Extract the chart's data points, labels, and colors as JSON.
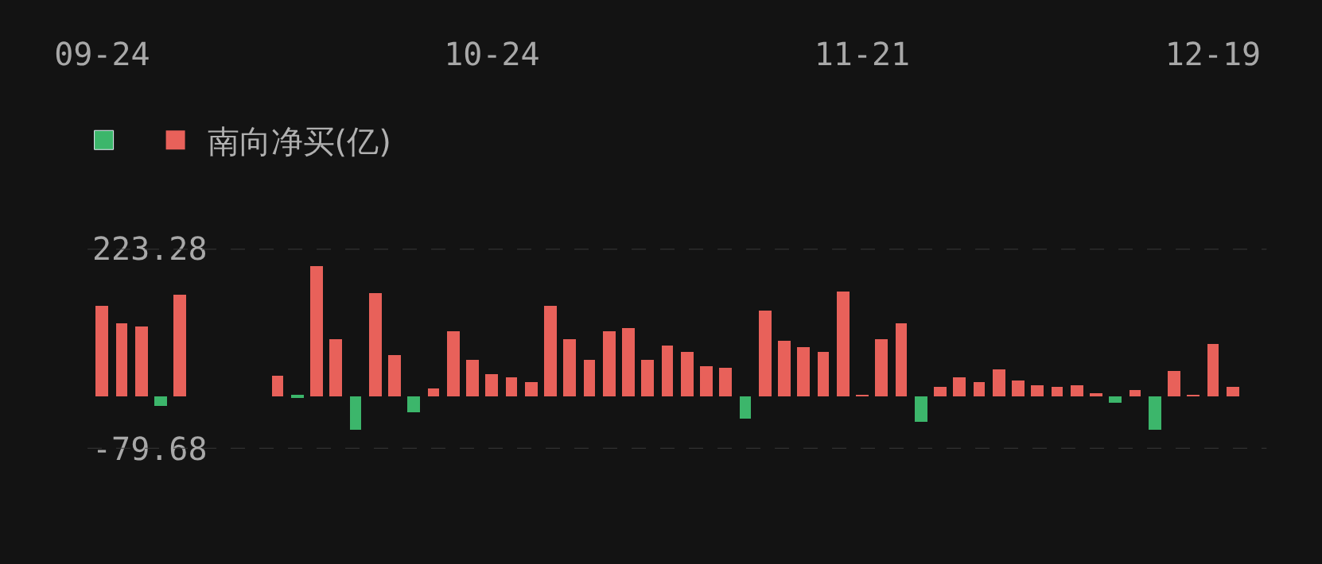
{
  "chart_data": {
    "type": "bar",
    "categories": [
      "09-24",
      null,
      null,
      null,
      null,
      null,
      null,
      null,
      null,
      null,
      null,
      null,
      null,
      null,
      null,
      null,
      null,
      null,
      null,
      null,
      "10-24",
      null,
      null,
      null,
      null,
      null,
      null,
      null,
      null,
      null,
      null,
      null,
      null,
      null,
      null,
      null,
      null,
      null,
      null,
      "11-21",
      null,
      null,
      null,
      null,
      null,
      null,
      null,
      null,
      null,
      null,
      null,
      null,
      null,
      null,
      null,
      null,
      null,
      "12-19",
      null
    ],
    "series": [
      {
        "name": "南向净买(亿)",
        "color": "#e8615a",
        "values": [
          137,
          110,
          105,
          -16,
          154,
          null,
          null,
          null,
          null,
          31,
          -2,
          197,
          85,
          -52,
          157,
          63,
          -26,
          12,
          99,
          54,
          34,
          29,
          22,
          136,
          87,
          55,
          98,
          103,
          55,
          76,
          67,
          45,
          43,
          -34,
          129,
          84,
          75,
          66,
          159,
          0.5,
          85,
          111,
          -39,
          13,
          28,
          22,
          41,
          23,
          15,
          14,
          16,
          5,
          -10,
          9,
          -52,
          37,
          0.5,
          79,
          13
        ],
        "colors": [
          "#e8615a",
          "#e8615a",
          "#e8615a",
          "#3cb66b",
          "#e8615a",
          null,
          null,
          null,
          null,
          "#e8615a",
          "#3cb66b",
          "#e8615a",
          "#e8615a",
          "#3cb66b",
          "#e8615a",
          "#e8615a",
          "#3cb66b",
          "#e8615a",
          "#e8615a",
          "#e8615a",
          "#e8615a",
          "#e8615a",
          "#e8615a",
          "#e8615a",
          "#e8615a",
          "#e8615a",
          "#e8615a",
          "#e8615a",
          "#e8615a",
          "#e8615a",
          "#e8615a",
          "#e8615a",
          "#e8615a",
          "#3cb66b",
          "#e8615a",
          "#e8615a",
          "#e8615a",
          "#e8615a",
          "#e8615a",
          "#e8615a",
          "#e8615a",
          "#e8615a",
          "#3cb66b",
          "#e8615a",
          "#e8615a",
          "#e8615a",
          "#e8615a",
          "#e8615a",
          "#e8615a",
          "#e8615a",
          "#e8615a",
          "#e8615a",
          "#3cb66b",
          "#e8615a",
          "#3cb66b",
          "#e8615a",
          "#e8615a",
          "#e8615a",
          "#e8615a"
        ]
      }
    ],
    "ylim": [
      -79.68,
      223.28
    ],
    "yticks": [
      223.28,
      -79.68
    ],
    "grid": "y",
    "legend": "top left"
  }
}
